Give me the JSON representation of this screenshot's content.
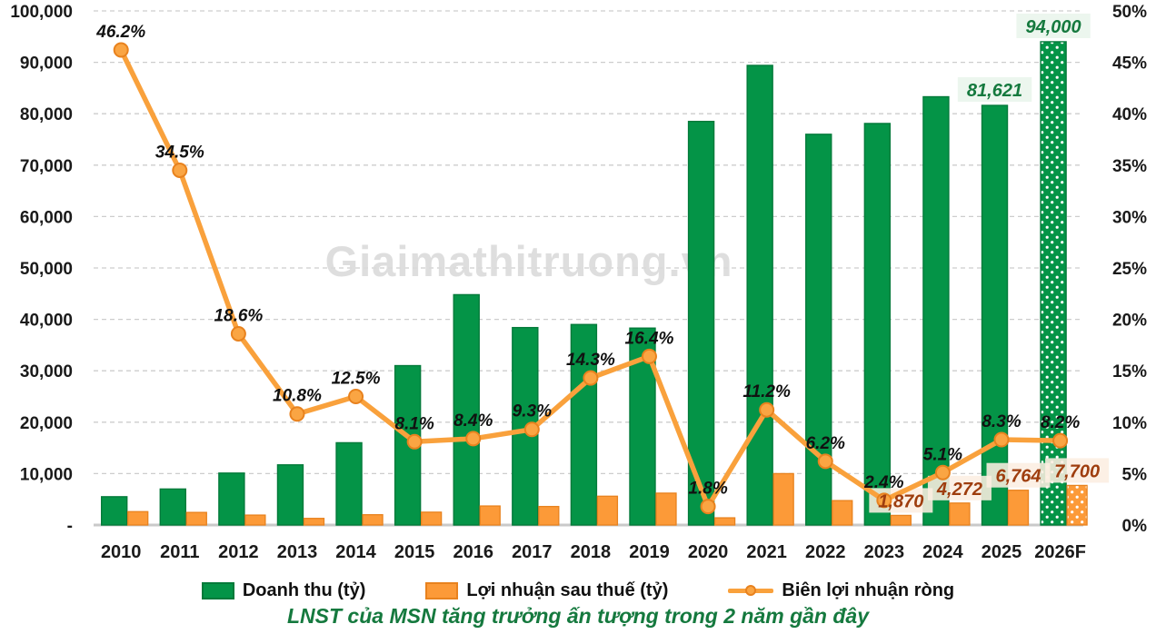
{
  "watermark": "Giaimathitruong.vn",
  "title": "LNST của MSN tăng trưởng ấn tượng trong 2 năm gần đây",
  "legend": {
    "revenue": "Doanh thu (tỷ)",
    "profit": "Lợi nhuận sau thuế (tỷ)",
    "margin": "Biên lợi nhuận ròng"
  },
  "colors": {
    "bar_revenue": "#049447",
    "bar_revenue_border": "#037A3A",
    "bar_profit": "#FC9A38",
    "bar_profit_border": "#E8821E",
    "line_margin": "#F9A13C",
    "marker_fill": "#FAA543",
    "marker_stroke": "#E8821E",
    "revenue_label_text": "#15793E",
    "revenue_label_bg": "#E9F5EC",
    "profit_label_text": "#9E3D0E",
    "profit_label_bg": "#FCEEE1",
    "percent_label_text": "#111111",
    "axis_text": "#1A1A1A",
    "gridline": "#CDCDCD",
    "baseline": "#C9C9C9",
    "title": "#15793E",
    "watermark": "#DBDBDB"
  },
  "chart_data": {
    "type": "combo-bar-line",
    "categories": [
      "2010",
      "2011",
      "2012",
      "2013",
      "2014",
      "2015",
      "2016",
      "2017",
      "2018",
      "2019",
      "2020",
      "2021",
      "2022",
      "2023",
      "2024",
      "2025",
      "2026F"
    ],
    "series": [
      {
        "name": "Doanh thu (tỷ)",
        "type": "bar",
        "axis": "left",
        "values": [
          5500,
          7000,
          10100,
          11700,
          16000,
          31000,
          44800,
          38400,
          39000,
          38300,
          78500,
          89400,
          76000,
          78100,
          83300,
          81621,
          94000
        ],
        "value_labels": {
          "15": "81,621",
          "16": "94,000"
        }
      },
      {
        "name": "Lợi nhuận sau thuế (tỷ)",
        "type": "bar",
        "axis": "left",
        "values": [
          2600,
          2450,
          1930,
          1290,
          2000,
          2500,
          3700,
          3600,
          5600,
          6200,
          1400,
          10000,
          4750,
          1870,
          4272,
          6764,
          7700
        ],
        "value_labels": {
          "13": "1,870",
          "14": "4,272",
          "15": "6,764",
          "16": "7,700"
        }
      },
      {
        "name": "Biên lợi nhuận ròng",
        "type": "line",
        "axis": "right",
        "values": [
          46.2,
          34.5,
          18.6,
          10.8,
          12.5,
          8.1,
          8.4,
          9.3,
          14.3,
          16.4,
          1.8,
          11.2,
          6.2,
          2.4,
          5.1,
          8.3,
          8.2
        ],
        "point_labels": [
          "46.2%",
          "34.5%",
          "18.6%",
          "10.8%",
          "12.5%",
          "8.1%",
          "8.4%",
          "9.3%",
          "14.3%",
          "16.4%",
          "1.8%",
          "11.2%",
          "6.2%",
          "2.4%",
          "5.1%",
          "8.3%",
          "8.2%"
        ]
      }
    ],
    "left_axis": {
      "min": 0,
      "max": 100000,
      "tick_step": 10000,
      "tick_labels": [
        "-",
        "10,000",
        "20,000",
        "30,000",
        "40,000",
        "50,000",
        "60,000",
        "70,000",
        "80,000",
        "90,000",
        "100,000"
      ]
    },
    "right_axis": {
      "min": 0,
      "max": 50,
      "tick_step": 5,
      "tick_labels": [
        "0%",
        "5%",
        "10%",
        "15%",
        "20%",
        "25%",
        "30%",
        "35%",
        "40%",
        "45%",
        "50%"
      ]
    },
    "forecast_index": 16,
    "grid": "horizontal-dashed",
    "legend_position": "bottom"
  }
}
